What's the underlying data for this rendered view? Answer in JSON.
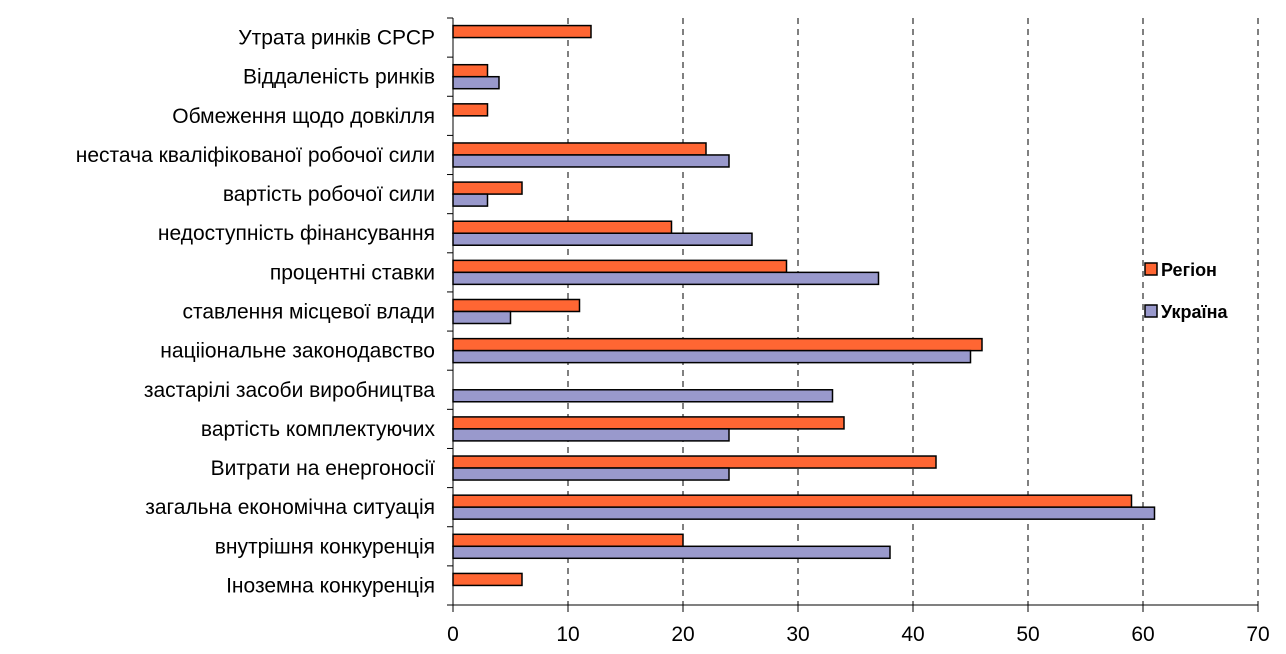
{
  "chart_data": {
    "type": "bar",
    "orientation": "horizontal",
    "categories": [
      "Утрата ринків СРСР",
      "Віддаленість ринків",
      "Обмеження щодо довкілля",
      "нестача кваліфікованої робочої сили",
      "вартість робочої сили",
      "недоступність фінансування",
      "процентні ставки",
      "ставлення місцевої влади",
      "націіональне законодавство",
      "застарілі засоби виробництва",
      "вартість комплектуючих",
      "Витрати на енергоносії",
      "загальна економічна ситуація",
      "внутрішня конкуренція",
      "Іноземна конкуренція"
    ],
    "series": [
      {
        "name": "Регіон",
        "color": "#ff6633",
        "values": [
          12,
          3,
          3,
          22,
          6,
          19,
          29,
          11,
          46,
          null,
          34,
          42,
          59,
          20,
          6
        ]
      },
      {
        "name": "Україна",
        "color": "#9999cc",
        "values": [
          null,
          4,
          null,
          24,
          3,
          26,
          37,
          5,
          45,
          33,
          24,
          24,
          61,
          38,
          null
        ]
      }
    ],
    "xlim": [
      0,
      70
    ],
    "xticks": [
      "0",
      "10",
      "20",
      "30",
      "40",
      "50",
      "60",
      "70"
    ],
    "grid": "vertical dashed",
    "legend_position": "right"
  }
}
